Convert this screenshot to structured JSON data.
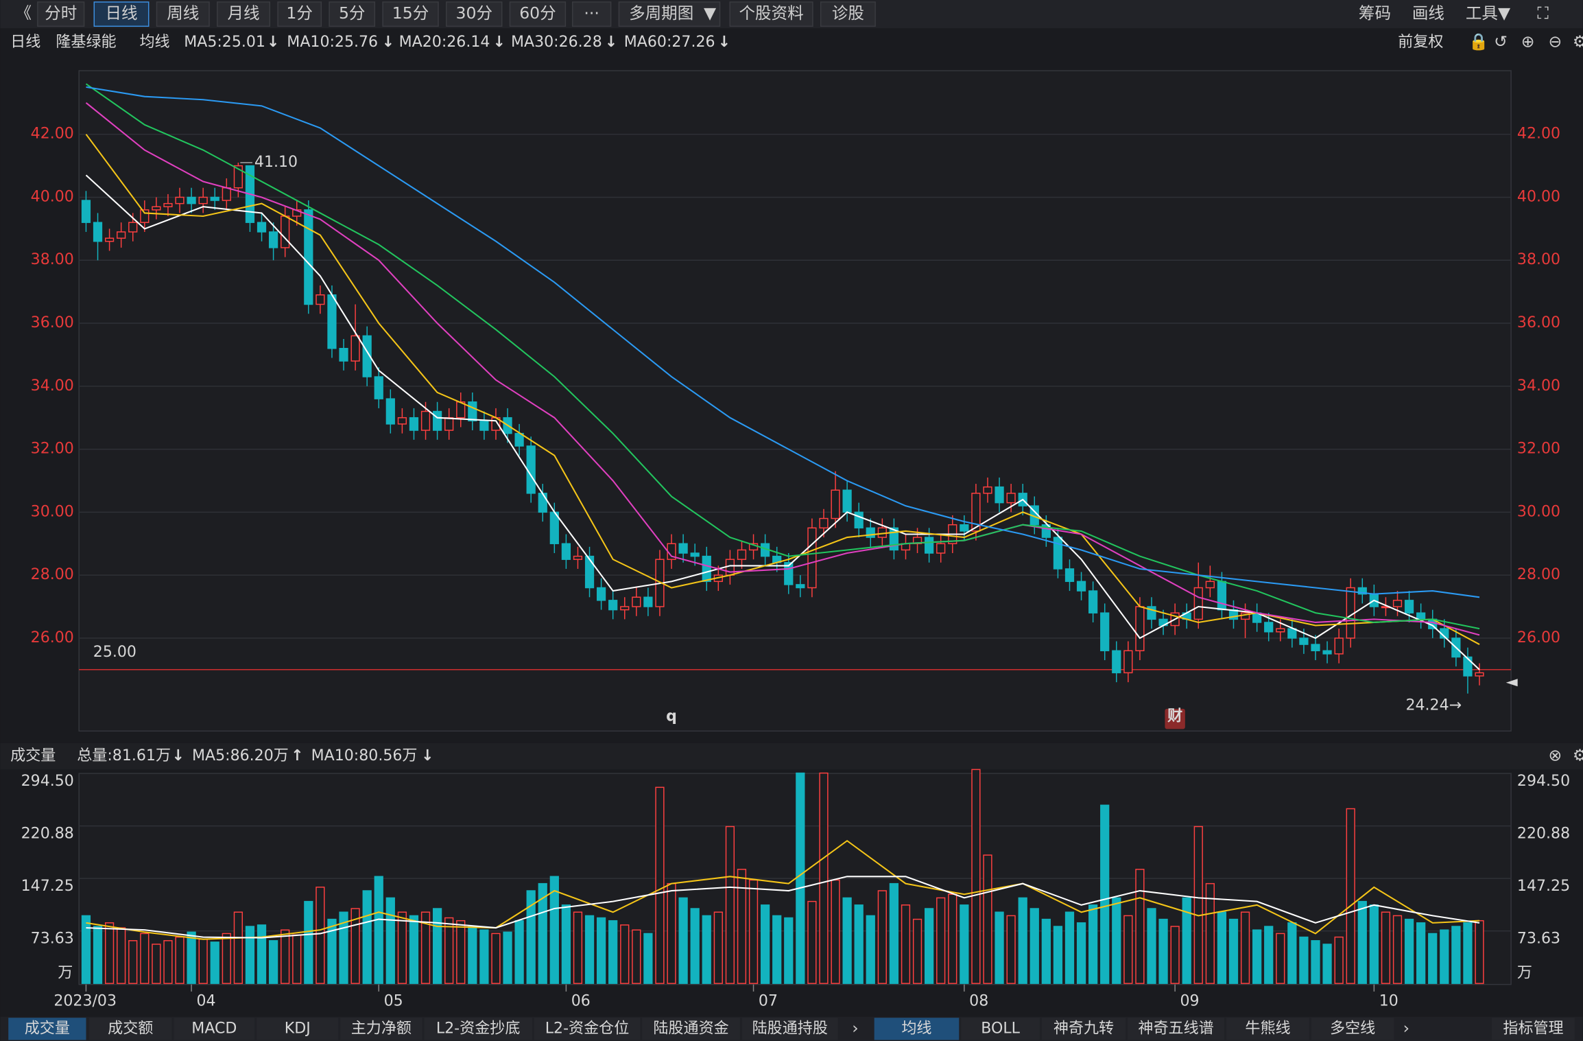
{
  "toolbar": {
    "buttons": [
      "分时",
      "日线",
      "周线",
      "月线",
      "1分",
      "5分",
      "15分",
      "30分",
      "60分",
      "多周期图",
      "个股资料",
      "诊股"
    ],
    "right": [
      "筹码",
      "画线",
      "工具"
    ]
  },
  "legend": {
    "period": "日线",
    "stock": "隆基绿能",
    "ma_title": "均线",
    "adjust": "前复权"
  },
  "volume_header": {
    "title": "成交量",
    "total": "总量:81.61万"
  },
  "bottom_tabs": {
    "left": [
      "成交量",
      "成交额",
      "MACD",
      "KDJ",
      "主力净额",
      "L2-资金抄底",
      "L2-资金仓位",
      "陆股通资金",
      "陆股通持股"
    ],
    "right": [
      "均线",
      "BOLL",
      "神奇九转",
      "神奇五线谱",
      "牛熊线",
      "多空线",
      "指标管理"
    ]
  },
  "chart_data": [
    {
      "type": "candlestick",
      "up_color": "#ff4040",
      "down_color": "#13b3bf",
      "xlim": [
        -0.6,
        121.7
      ],
      "ylim": [
        23.05,
        44.02
      ],
      "yticks": [
        {
          "value": 26,
          "label": "26.00"
        },
        {
          "value": 28,
          "label": "28.00"
        },
        {
          "value": 30,
          "label": "30.00"
        },
        {
          "value": 32,
          "label": "32.00"
        },
        {
          "value": 34,
          "label": "34.00"
        },
        {
          "value": 36,
          "label": "36.00"
        },
        {
          "value": 38,
          "label": "38.00"
        },
        {
          "value": 40,
          "label": "40.00"
        },
        {
          "value": 42,
          "label": "42.00"
        }
      ],
      "grid": true,
      "open": [
        39.9,
        39.2,
        38.6,
        38.7,
        38.9,
        39.2,
        39.6,
        39.7,
        39.8,
        40.0,
        39.8,
        40.0,
        39.9,
        40.3,
        41.0,
        39.2,
        38.9,
        38.4,
        39.4,
        39.6,
        36.6,
        36.9,
        35.2,
        34.8,
        35.6,
        34.3,
        33.6,
        32.8,
        33.0,
        32.6,
        33.2,
        32.6,
        33.0,
        33.5,
        32.9,
        32.6,
        33.0,
        32.5,
        32.1,
        30.6,
        30.0,
        29.0,
        28.5,
        28.6,
        27.6,
        27.2,
        26.9,
        27.0,
        27.3,
        27.0,
        28.5,
        29.0,
        28.7,
        28.6,
        27.8,
        28.0,
        28.5,
        28.8,
        29.0,
        28.6,
        28.4,
        27.7,
        27.6,
        29.5,
        29.8,
        30.7,
        30.0,
        29.5,
        29.2,
        29.5,
        28.8,
        29.0,
        29.2,
        28.7,
        29.0,
        29.6,
        29.4,
        30.6,
        30.8,
        30.3,
        30.6,
        30.2,
        29.6,
        29.2,
        28.2,
        27.8,
        27.5,
        26.8,
        25.6,
        24.9,
        25.6,
        27.0,
        26.6,
        26.4,
        26.8,
        26.6,
        27.6,
        27.8,
        26.9,
        26.6,
        26.8,
        26.5,
        26.2,
        26.3,
        26.0,
        25.8,
        25.6,
        25.5,
        26.0,
        27.6,
        27.4,
        27.0,
        27.0,
        27.2,
        26.8,
        26.6,
        26.3,
        26.0,
        25.4,
        24.8
      ],
      "high": [
        40.2,
        39.5,
        39.0,
        39.2,
        39.5,
        39.9,
        40.0,
        40.1,
        40.3,
        40.3,
        40.3,
        40.3,
        40.6,
        41.1,
        41.0,
        39.5,
        39.2,
        39.7,
        39.9,
        39.9,
        37.2,
        37.2,
        35.5,
        36.6,
        35.9,
        34.6,
        33.9,
        33.3,
        33.3,
        33.5,
        33.5,
        33.3,
        33.8,
        33.8,
        33.2,
        33.3,
        33.3,
        32.8,
        32.4,
        30.9,
        30.3,
        29.3,
        28.9,
        28.9,
        27.9,
        27.5,
        27.3,
        27.6,
        27.6,
        28.8,
        29.3,
        29.3,
        29.0,
        28.9,
        28.3,
        28.8,
        29.1,
        29.3,
        29.3,
        28.9,
        28.7,
        28.0,
        29.8,
        30.1,
        31.3,
        31.0,
        30.3,
        29.8,
        29.8,
        29.8,
        29.3,
        29.5,
        29.5,
        29.3,
        29.9,
        29.9,
        30.9,
        31.1,
        31.1,
        30.9,
        30.9,
        30.5,
        29.9,
        29.5,
        28.5,
        28.1,
        27.8,
        27.1,
        25.9,
        25.9,
        27.3,
        27.3,
        26.9,
        27.1,
        27.1,
        28.4,
        28.3,
        28.1,
        27.2,
        27.1,
        27.1,
        26.8,
        26.6,
        26.6,
        26.3,
        26.1,
        25.9,
        26.3,
        27.9,
        27.9,
        27.7,
        27.3,
        27.5,
        27.5,
        27.1,
        26.9,
        26.6,
        26.3,
        25.7,
        25.2
      ],
      "low": [
        38.9,
        38.0,
        38.3,
        38.4,
        38.6,
        38.9,
        39.3,
        39.4,
        39.5,
        39.5,
        39.5,
        39.6,
        39.6,
        40.0,
        38.9,
        38.6,
        38.0,
        38.1,
        39.1,
        36.3,
        36.3,
        34.9,
        34.5,
        34.5,
        34.0,
        33.3,
        32.5,
        32.5,
        32.3,
        32.3,
        32.3,
        32.3,
        32.7,
        32.6,
        32.3,
        32.3,
        32.2,
        31.8,
        30.3,
        29.7,
        28.7,
        28.2,
        28.2,
        27.3,
        26.9,
        26.6,
        26.6,
        26.7,
        26.7,
        26.7,
        28.2,
        28.4,
        28.3,
        27.5,
        27.5,
        27.7,
        28.2,
        28.5,
        28.3,
        28.1,
        27.4,
        27.3,
        27.3,
        29.2,
        29.5,
        29.7,
        29.2,
        28.9,
        28.9,
        28.5,
        28.5,
        28.7,
        28.4,
        28.4,
        28.7,
        29.1,
        29.1,
        30.3,
        30.0,
        30.0,
        29.9,
        29.3,
        28.9,
        27.9,
        27.5,
        27.2,
        26.5,
        25.3,
        24.6,
        24.6,
        25.3,
        26.3,
        26.1,
        26.1,
        26.3,
        26.3,
        27.3,
        26.6,
        26.3,
        26.0,
        26.2,
        25.9,
        25.9,
        25.7,
        25.5,
        25.3,
        25.2,
        25.2,
        25.7,
        27.1,
        26.7,
        26.7,
        26.7,
        26.5,
        26.3,
        26.0,
        25.7,
        25.1,
        24.24,
        24.5
      ],
      "close": [
        39.2,
        38.6,
        38.7,
        38.9,
        39.2,
        39.6,
        39.7,
        39.8,
        40.0,
        39.8,
        40.0,
        39.9,
        40.3,
        41.0,
        39.2,
        38.9,
        38.4,
        39.4,
        39.6,
        36.6,
        36.9,
        35.2,
        34.8,
        35.6,
        34.3,
        33.6,
        32.8,
        33.0,
        32.6,
        33.2,
        32.6,
        33.0,
        33.5,
        32.9,
        32.6,
        33.0,
        32.5,
        32.1,
        30.6,
        30.0,
        29.0,
        28.5,
        28.6,
        27.6,
        27.2,
        26.9,
        27.0,
        27.3,
        27.0,
        28.5,
        29.0,
        28.7,
        28.6,
        27.8,
        28.0,
        28.5,
        28.8,
        29.0,
        28.6,
        28.4,
        27.7,
        27.6,
        29.5,
        29.8,
        30.7,
        30.0,
        29.5,
        29.2,
        29.5,
        28.8,
        29.0,
        29.2,
        28.7,
        29.0,
        29.6,
        29.4,
        30.6,
        30.8,
        30.3,
        30.6,
        30.2,
        29.6,
        29.2,
        28.2,
        27.8,
        27.5,
        26.8,
        25.6,
        24.9,
        25.6,
        27.0,
        26.6,
        26.4,
        26.8,
        26.6,
        27.6,
        27.8,
        26.9,
        26.6,
        26.8,
        26.5,
        26.2,
        26.3,
        26.0,
        25.8,
        25.6,
        25.5,
        26.0,
        27.6,
        27.4,
        27.0,
        27.0,
        27.2,
        26.8,
        26.6,
        26.3,
        26.0,
        25.4,
        24.8,
        24.9
      ],
      "annotations": [
        {
          "index": 13,
          "text": "41.10"
        },
        {
          "index": 118,
          "text": "24.24→"
        }
      ],
      "hline": {
        "value": 25,
        "label": "25.00",
        "color": "#e03030"
      },
      "markers": [
        {
          "index": 50,
          "text": "q"
        },
        {
          "index": 93,
          "text": "财"
        }
      ],
      "ma_x": [
        0,
        5,
        10,
        15,
        20,
        25,
        30,
        35,
        40,
        45,
        50,
        55,
        60,
        65,
        70,
        75,
        80,
        85,
        90,
        95,
        100,
        105,
        110,
        115,
        119
      ],
      "series": [
        {
          "name": "MA5:25.01",
          "color": "#ffffff",
          "values": [
            40.7,
            39.0,
            39.7,
            39.5,
            37.5,
            34.5,
            33.0,
            32.9,
            30.0,
            27.5,
            27.8,
            28.3,
            28.3,
            30.0,
            29.3,
            29.3,
            30.4,
            28.5,
            26.0,
            27.0,
            26.8,
            26.0,
            27.2,
            26.4,
            25.0
          ]
        },
        {
          "name": "MA10:25.76",
          "color": "#f5c518",
          "values": [
            42.0,
            39.5,
            39.4,
            39.8,
            38.8,
            36.0,
            33.8,
            33.0,
            31.8,
            28.5,
            27.6,
            28.0,
            28.5,
            29.2,
            29.4,
            29.2,
            30.0,
            29.3,
            27.0,
            26.5,
            26.8,
            26.4,
            26.5,
            26.6,
            25.8
          ]
        },
        {
          "name": "MA20:26.14",
          "color": "#e040c0",
          "values": [
            43.0,
            41.5,
            40.5,
            40.0,
            39.3,
            38.0,
            36.0,
            34.2,
            33.0,
            31.0,
            28.6,
            28.1,
            28.2,
            28.7,
            29.0,
            29.1,
            29.6,
            29.3,
            28.3,
            27.3,
            26.8,
            26.5,
            26.6,
            26.5,
            26.1
          ]
        },
        {
          "name": "MA30:26.28",
          "color": "#22c55e",
          "values": [
            43.6,
            42.3,
            41.5,
            40.5,
            39.5,
            38.5,
            37.2,
            35.8,
            34.3,
            32.5,
            30.5,
            29.2,
            28.6,
            28.8,
            29.0,
            29.1,
            29.6,
            29.4,
            28.6,
            28.0,
            27.5,
            26.8,
            26.5,
            26.6,
            26.3
          ]
        },
        {
          "name": "MA60:27.26",
          "color": "#2b9af3",
          "values": [
            43.5,
            43.2,
            43.1,
            42.9,
            42.2,
            41.0,
            39.8,
            38.6,
            37.3,
            35.8,
            34.3,
            33.0,
            32.0,
            31.0,
            30.2,
            29.7,
            29.3,
            28.8,
            28.2,
            28.0,
            27.8,
            27.6,
            27.4,
            27.5,
            27.3
          ]
        }
      ]
    },
    {
      "type": "bar",
      "unit": "万",
      "xlim": [
        -0.6,
        121.7
      ],
      "ylim": [
        0,
        294.5
      ],
      "yticks": [
        73.63,
        147.25,
        220.88,
        {
          "value": 294.5,
          "label": "294.50"
        }
      ],
      "xticks": [
        {
          "value": 0,
          "label": "2023/03"
        },
        {
          "value": 9,
          "label": "04"
        },
        {
          "value": 25,
          "label": "05"
        },
        {
          "value": 41,
          "label": "06"
        },
        {
          "value": 57,
          "label": "07"
        },
        {
          "value": 75,
          "label": "08"
        },
        {
          "value": 93,
          "label": "09"
        },
        {
          "value": 110,
          "label": "10"
        }
      ],
      "values": [
        95,
        80,
        85,
        78,
        60,
        70,
        55,
        60,
        65,
        72,
        62,
        58,
        70,
        100,
        80,
        82,
        60,
        75,
        68,
        115,
        135,
        90,
        100,
        105,
        130,
        150,
        120,
        100,
        95,
        100,
        105,
        92,
        88,
        80,
        75,
        70,
        72,
        88,
        130,
        140,
        150,
        110,
        100,
        95,
        92,
        88,
        82,
        75,
        70,
        275,
        140,
        120,
        105,
        95,
        100,
        220,
        160,
        145,
        110,
        95,
        92,
        295,
        115,
        295,
        145,
        120,
        110,
        95,
        130,
        140,
        110,
        90,
        105,
        120,
        125,
        110,
        300,
        180,
        100,
        95,
        120,
        105,
        90,
        80,
        100,
        85,
        110,
        250,
        120,
        95,
        160,
        105,
        90,
        80,
        120,
        220,
        140,
        100,
        90,
        100,
        75,
        80,
        70,
        85,
        65,
        60,
        55,
        65,
        245,
        115,
        110,
        100,
        95,
        90,
        85,
        70,
        75,
        80,
        85,
        88
      ],
      "ma_x": [
        0,
        5,
        10,
        15,
        20,
        25,
        30,
        35,
        40,
        45,
        50,
        55,
        60,
        65,
        70,
        75,
        80,
        85,
        90,
        95,
        100,
        105,
        110,
        115,
        119
      ],
      "series": [
        {
          "name": "MA5:86.20万",
          "color": "#f5c518",
          "values": [
            85,
            72,
            62,
            65,
            75,
            100,
            80,
            78,
            130,
            100,
            140,
            150,
            140,
            200,
            140,
            125,
            140,
            100,
            120,
            95,
            110,
            70,
            135,
            85,
            88
          ]
        },
        {
          "name": "MA10:80.56万",
          "color": "#ffffff",
          "values": [
            78,
            75,
            65,
            64,
            70,
            90,
            85,
            78,
            105,
            115,
            130,
            135,
            130,
            150,
            150,
            120,
            140,
            110,
            130,
            120,
            115,
            85,
            110,
            95,
            85
          ]
        }
      ]
    }
  ]
}
